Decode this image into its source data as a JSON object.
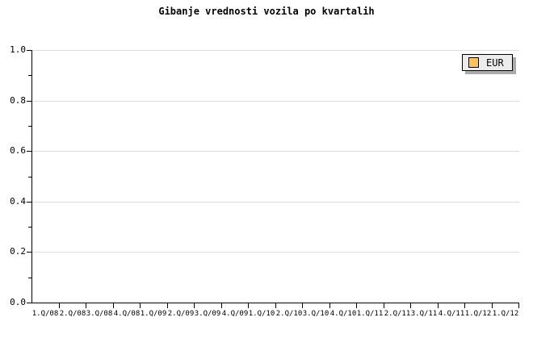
{
  "title": "Gibanje vrednosti vozila po kvartalih",
  "legend": {
    "label": "EUR",
    "swatch_color": "#FCC35C",
    "position": "top-right"
  },
  "colors": {
    "background": "#FFFFFF",
    "gridline": "#DCDCDC",
    "axis": "#000000",
    "text": "#000000",
    "legend_background": "#ECECEC",
    "legend_border": "#000000",
    "legend_shadow": "#ABABAB",
    "series_eur": "#FCC35C"
  },
  "chart_data": {
    "type": "line",
    "title": "Gibanje vrednosti vozila po kvartalih",
    "categories": [
      "1.Q/08",
      "2.Q/08",
      "3.Q/08",
      "4.Q/08",
      "1.Q/09",
      "2.Q/09",
      "3.Q/09",
      "4.Q/09",
      "1.Q/10",
      "2.Q/10",
      "3.Q/10",
      "4.Q/10",
      "1.Q/11",
      "2.Q/11",
      "3.Q/11",
      "4.Q/11",
      "1.Q/12",
      "1.Q/12"
    ],
    "series": [
      {
        "name": "EUR",
        "values": []
      }
    ],
    "note": "plot area is empty - no data points rendered",
    "xlabel": "",
    "ylabel": "",
    "ylim": [
      0.0,
      1.0
    ],
    "ytick_labels": [
      "0.0",
      "0.2",
      "0.4",
      "0.6",
      "0.8",
      "1.0"
    ],
    "minor_yticks": [
      0.1,
      0.3,
      0.5,
      0.7,
      0.9
    ],
    "grid": true,
    "gridlines": "horizontal-only",
    "legend_position": "top-right"
  }
}
